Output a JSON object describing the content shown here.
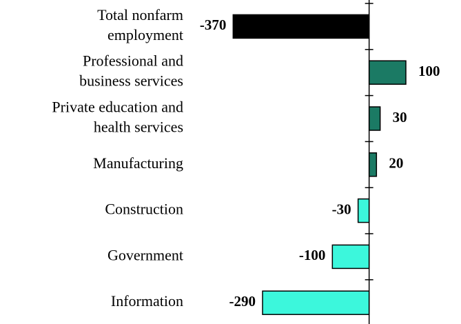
{
  "chart_data": {
    "type": "barh",
    "categories": [
      "Total nonfarm\nemployment",
      "Professional and\nbusiness services",
      "Private education and\nhealth services",
      "Manufacturing",
      "Construction",
      "Government",
      "Information"
    ],
    "values": [
      -370,
      100,
      30,
      20,
      -30,
      -100,
      -290
    ],
    "colors": [
      "#000000",
      "#1b7a64",
      "#1b7a64",
      "#1b7a64",
      "#3cf7dc",
      "#3cf7dc",
      "#3cf7dc"
    ],
    "xlim": [
      -500,
      250
    ]
  }
}
